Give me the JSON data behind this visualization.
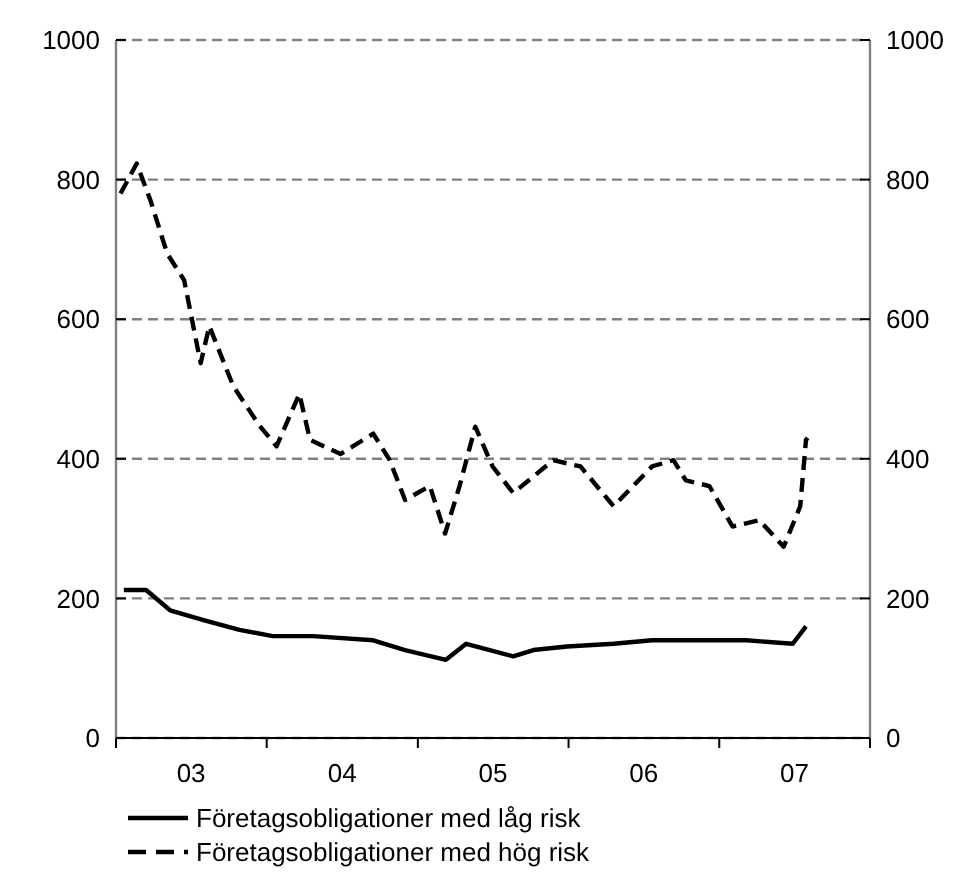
{
  "chart_data": {
    "type": "line",
    "xlim": [
      "2003-01-01",
      "2008-01-01"
    ],
    "xticks": [
      {
        "value": "2003-01-01",
        "label": null
      },
      {
        "value": "2003-07-02",
        "label": "03"
      },
      {
        "value": "2004-01-01",
        "label": null
      },
      {
        "value": "2004-07-02",
        "label": "04"
      },
      {
        "value": "2005-01-01",
        "label": null
      },
      {
        "value": "2005-07-02",
        "label": "05"
      },
      {
        "value": "2006-01-01",
        "label": null
      },
      {
        "value": "2006-07-02",
        "label": "06"
      },
      {
        "value": "2007-01-01",
        "label": null
      },
      {
        "value": "2007-07-02",
        "label": "07"
      },
      {
        "value": "2008-01-01",
        "label": null
      }
    ],
    "ylim": [
      0,
      1000
    ],
    "yticks": [
      0,
      200,
      400,
      600,
      800,
      1000
    ],
    "y2lim": [
      0,
      1000
    ],
    "y2ticks": [
      0,
      200,
      400,
      600,
      800,
      1000
    ],
    "grid": "y",
    "legend": "bottom left",
    "series": [
      {
        "name": "Företagsobligationer med låg risk",
        "color": "#000000",
        "line_style": "solid",
        "x": [
          "2003-01-20",
          "2003-03-15",
          "2003-05-12",
          "2003-08-01",
          "2003-10-27",
          "2004-01-15",
          "2004-04-22",
          "2004-09-15",
          "2004-12-01",
          "2005-03-10",
          "2005-04-28",
          "2005-08-20",
          "2005-10-08",
          "2005-12-28",
          "2006-04-20",
          "2006-07-22",
          "2006-10-30",
          "2007-03-07",
          "2007-06-28",
          "2007-07-30"
        ],
        "values": [
          212,
          212,
          183,
          169,
          155,
          146,
          146,
          140,
          126,
          112,
          135,
          117,
          126,
          131,
          135,
          140,
          140,
          140,
          135,
          160
        ]
      },
      {
        "name": "Företagsobligationer med hög risk",
        "color": "#000000",
        "line_style": "dashed",
        "x": [
          "2003-01-12",
          "2003-02-20",
          "2003-03-25",
          "2003-05-05",
          "2003-06-15",
          "2003-07-25",
          "2003-08-15",
          "2003-10-12",
          "2003-12-15",
          "2004-01-25",
          "2004-03-20",
          "2004-04-15",
          "2004-06-28",
          "2004-09-15",
          "2004-10-25",
          "2004-12-01",
          "2005-01-30",
          "2005-03-08",
          "2005-04-12",
          "2005-05-20",
          "2005-07-01",
          "2005-08-20",
          "2005-11-25",
          "2006-01-30",
          "2006-04-20",
          "2006-07-22",
          "2006-09-12",
          "2006-10-12",
          "2006-12-08",
          "2007-02-02",
          "2007-04-08",
          "2007-06-06",
          "2007-07-16",
          "2007-07-30",
          "2007-08-03"
        ],
        "values": [
          780,
          823,
          771,
          694,
          656,
          537,
          590,
          504,
          447,
          418,
          493,
          427,
          407,
          436,
          398,
          341,
          361,
          293,
          361,
          446,
          389,
          351,
          398,
          389,
          332,
          389,
          398,
          369,
          361,
          303,
          312,
          274,
          332,
          427,
          430
        ]
      }
    ]
  }
}
